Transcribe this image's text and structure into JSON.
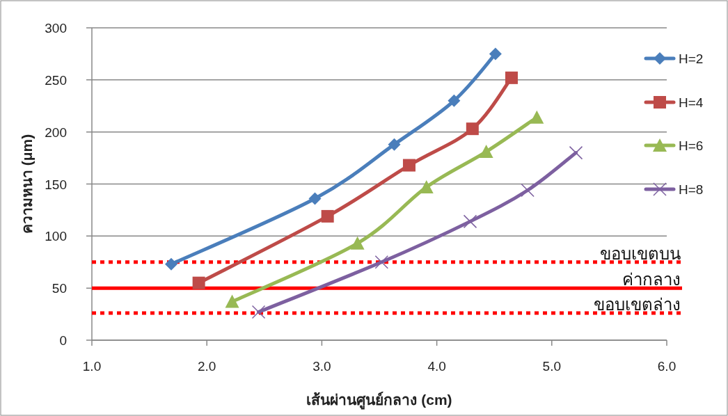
{
  "chart_data": {
    "type": "line",
    "xlabel": "เส้นผ่านศูนย์กลาง (cm)",
    "ylabel": "ความหนา (μm)",
    "xlim": [
      1,
      6
    ],
    "xticks": [
      {
        "value": 1,
        "label": "1.0"
      },
      {
        "value": 2,
        "label": "2.0"
      },
      {
        "value": 3,
        "label": "3.0"
      },
      {
        "value": 4,
        "label": "4.0"
      },
      {
        "value": 5,
        "label": "5.0"
      },
      {
        "value": 6,
        "label": "6.0"
      }
    ],
    "ylim": [
      0,
      300
    ],
    "yticks": [
      0,
      50,
      100,
      150,
      200,
      250,
      300
    ],
    "grid": "y",
    "legend": "right",
    "series": [
      {
        "name": "H=2",
        "color": "#4a7ebb",
        "marker": "diamond",
        "x": [
          1.69,
          2.94,
          3.63,
          4.15,
          4.51
        ],
        "values": [
          73,
          136,
          188,
          230,
          275
        ]
      },
      {
        "name": "H=4",
        "color": "#be4b48",
        "marker": "square",
        "x": [
          1.93,
          3.05,
          3.76,
          4.31,
          4.65
        ],
        "values": [
          55,
          119,
          168,
          203,
          252
        ]
      },
      {
        "name": "H=6",
        "color": "#98b954",
        "marker": "triangle",
        "x": [
          2.22,
          3.31,
          3.91,
          4.43,
          4.87
        ],
        "values": [
          37,
          93,
          147,
          181,
          214
        ]
      },
      {
        "name": "H=8",
        "color": "#7d60a0",
        "marker": "cross",
        "x": [
          2.45,
          3.52,
          4.29,
          4.79,
          5.21
        ],
        "values": [
          27,
          75,
          114,
          144,
          180
        ]
      }
    ],
    "ref_lines": [
      {
        "axis": "y",
        "value": 75,
        "label": "ขอบเขตบน",
        "color": "#ff0000",
        "line_style": "dotted"
      },
      {
        "axis": "y",
        "value": 50,
        "label": "ค่ากลาง",
        "color": "#ff0000",
        "line_style": "solid"
      },
      {
        "axis": "y",
        "value": 26,
        "label": "ขอบเขตล่าง",
        "color": "#ff0000",
        "line_style": "dotted"
      }
    ]
  }
}
